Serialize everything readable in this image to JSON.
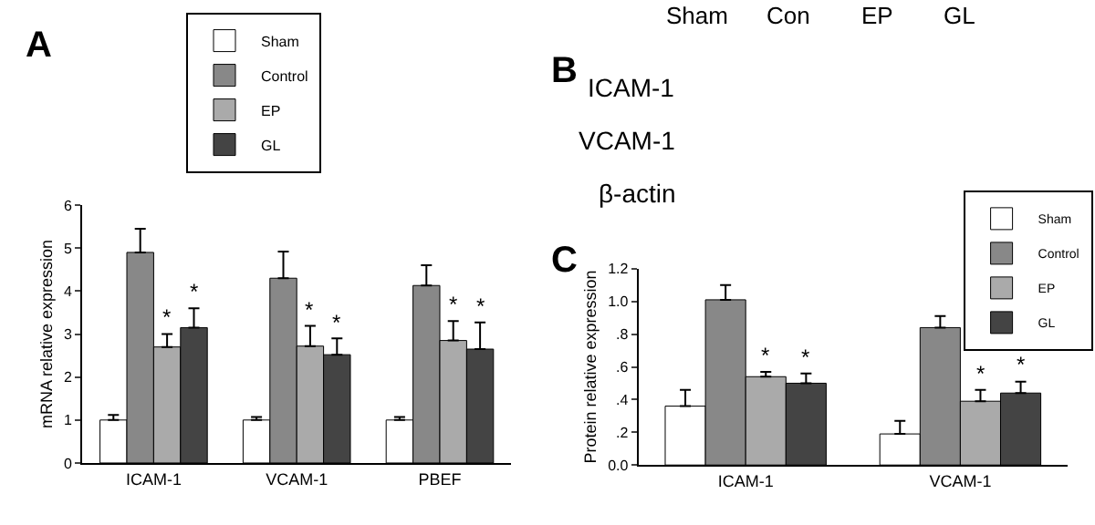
{
  "chart_data": [
    {
      "type": "bar",
      "title": "A",
      "ylabel": "mRNA relative expression",
      "categories": [
        "ICAM-1",
        "VCAM-1",
        "PBEF"
      ],
      "ylim": [
        0,
        6
      ],
      "yticks": [
        0,
        1,
        2,
        3,
        4,
        5,
        6
      ],
      "legend": "top",
      "series": [
        {
          "name": "Sham",
          "color": "#ffffff",
          "values": [
            1.0,
            1.0,
            1.0
          ],
          "errors": [
            [
              1.0,
              1.12
            ],
            [
              1.0,
              1.07
            ],
            [
              1.0,
              1.07
            ]
          ]
        },
        {
          "name": "Control",
          "color": "#888888",
          "values": [
            4.9,
            4.3,
            4.13
          ],
          "errors": [
            [
              4.9,
              5.45
            ],
            [
              4.3,
              4.92
            ],
            [
              4.13,
              4.6
            ]
          ]
        },
        {
          "name": "EP",
          "color": "#aaaaaa",
          "values": [
            2.7,
            2.72,
            2.85
          ],
          "errors": [
            [
              2.7,
              3.0
            ],
            [
              2.72,
              3.19
            ],
            [
              2.85,
              3.3
            ]
          ],
          "value_labels": [
            "*",
            "*",
            "*"
          ]
        },
        {
          "name": "GL",
          "color": "#444444",
          "values": [
            3.15,
            2.52,
            2.65
          ],
          "errors": [
            [
              3.15,
              3.6
            ],
            [
              2.52,
              2.9
            ],
            [
              2.65,
              3.27
            ]
          ],
          "value_labels": [
            "*",
            "*",
            "*"
          ]
        }
      ]
    },
    {
      "type": "other",
      "title": "B",
      "categories": [
        "Sham",
        "Con",
        "EP",
        "GL"
      ],
      "y_categories": [
        "ICAM-1",
        "VCAM-1",
        "β-actin"
      ]
    },
    {
      "type": "bar",
      "title": "C",
      "ylabel": "Protein relative expression",
      "categories": [
        "ICAM-1",
        "VCAM-1"
      ],
      "ylim": [
        0,
        1.2
      ],
      "yticks": [
        {
          "value": 0,
          "label": "0.0"
        },
        {
          "value": 0.2,
          "label": ".2"
        },
        {
          "value": 0.4,
          "label": ".4"
        },
        {
          "value": 0.6,
          "label": ".6"
        },
        {
          "value": 0.8,
          "label": ".8"
        },
        {
          "value": 1.0,
          "label": "1.0"
        },
        {
          "value": 1.2,
          "label": "1.2"
        }
      ],
      "legend": "top right",
      "series": [
        {
          "name": "Sham",
          "color": "#ffffff",
          "values": [
            0.36,
            0.19
          ],
          "errors": [
            [
              0.36,
              0.46
            ],
            [
              0.19,
              0.27
            ]
          ]
        },
        {
          "name": "Control",
          "color": "#888888",
          "values": [
            1.01,
            0.84
          ],
          "errors": [
            [
              1.01,
              1.1
            ],
            [
              0.84,
              0.91
            ]
          ]
        },
        {
          "name": "EP",
          "color": "#aaaaaa",
          "values": [
            0.54,
            0.39
          ],
          "errors": [
            [
              0.54,
              0.57
            ],
            [
              0.39,
              0.46
            ]
          ],
          "value_labels": [
            "*",
            "*"
          ]
        },
        {
          "name": "GL",
          "color": "#444444",
          "values": [
            0.5,
            0.44
          ],
          "errors": [
            [
              0.5,
              0.56
            ],
            [
              0.44,
              0.51
            ]
          ],
          "value_labels": [
            "*",
            "*"
          ]
        }
      ]
    }
  ]
}
